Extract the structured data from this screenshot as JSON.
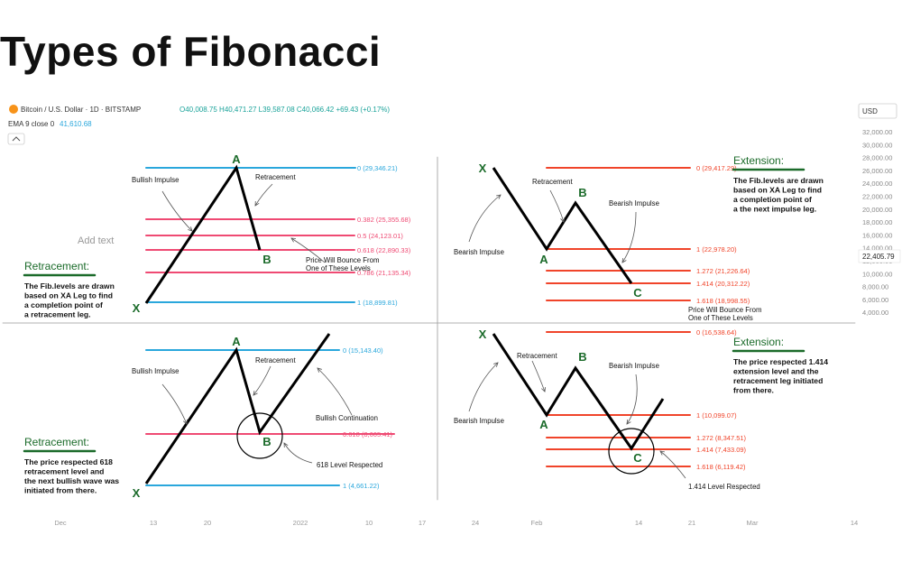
{
  "page_title": "Types of Fibonacci",
  "header": {
    "symbol": "Bitcoin / U.S. Dollar · 1D · BITSTAMP",
    "ohlc": "O40,008.75 H40,471.27 L39,587.08 C40,066.42 +69.43 (+0.17%)",
    "ema": "EMA 9 close 0",
    "ema_value": "41,610.68",
    "currency": "USD",
    "last_price": "22,405.79",
    "add_text": "Add text"
  },
  "colors": {
    "blue": "#2aa7dc",
    "pink": "#ef4a73",
    "red": "#f0442a",
    "green": "#1b6b2a",
    "price_tag_bg": "#ffffff"
  },
  "chart_data": {
    "type": "line",
    "price_axis": [
      "32,000.00",
      "30,000.00",
      "28,000.00",
      "26,000.00",
      "24,000.00",
      "22,000.00",
      "20,000.00",
      "18,000.00",
      "16,000.00",
      "14,000.00",
      "12,000.00",
      "10,000.00",
      "8,000.00",
      "6,000.00",
      "4,000.00"
    ],
    "time_axis": [
      "Dec",
      "13",
      "20",
      "2022",
      "10",
      "17",
      "24",
      "Feb",
      "14",
      "21",
      "Mar",
      "14"
    ],
    "panels": [
      {
        "id": "top-left",
        "heading": "Retracement:",
        "description": [
          "The Fib.levels are drawn",
          "based on XA Leg to find",
          "a completion point of",
          "a retracement leg."
        ],
        "points": [
          "X",
          "A",
          "B"
        ],
        "levels": [
          {
            "label": "0 (29,346.21)",
            "color": "blue"
          },
          {
            "label": "0.382 (25,355.68)",
            "color": "pink"
          },
          {
            "label": "0.5 (24,123.01)",
            "color": "pink"
          },
          {
            "label": "0.618 (22,890.33)",
            "color": "pink"
          },
          {
            "label": "0.786 (21,135.34)",
            "color": "pink"
          },
          {
            "label": "1 (18,899.81)",
            "color": "blue"
          }
        ],
        "annotations": [
          "Bullish Impulse",
          "Retracement",
          "Price Will Bounce From",
          "One of These Levels"
        ]
      },
      {
        "id": "top-right",
        "heading": "Extension:",
        "description": [
          "The Fib.levels are drawn",
          "based on XA Leg to find",
          "a completion point of",
          "a the next impulse leg."
        ],
        "points": [
          "X",
          "A",
          "B",
          "C"
        ],
        "levels": [
          {
            "label": "0 (29,417.29)",
            "color": "red"
          },
          {
            "label": "1 (22,978.20)",
            "color": "red"
          },
          {
            "label": "1.272 (21,226.64)",
            "color": "red"
          },
          {
            "label": "1.414 (20,312.22)",
            "color": "red"
          },
          {
            "label": "1.618 (18,998.55)",
            "color": "red"
          }
        ],
        "annotations": [
          "Retracement",
          "Bearish Impulse",
          "Bearish Impulse",
          "Price Will Bounce From",
          "One of These Levels"
        ]
      },
      {
        "id": "bottom-left",
        "heading": "Retracement:",
        "description": [
          "The price respected 618",
          "retracement level and",
          "the next bullish wave was",
          "initiated from there."
        ],
        "points": [
          "X",
          "A",
          "B"
        ],
        "levels": [
          {
            "label": "0 (15,143.40)",
            "color": "blue"
          },
          {
            "label": "0.618 (8,665.41)",
            "color": "pink"
          },
          {
            "label": "1 (4,661.22)",
            "color": "blue"
          }
        ],
        "annotations": [
          "Bullish Impulse",
          "Retracement",
          "Bullish Continuation",
          "618 Level Respected"
        ]
      },
      {
        "id": "bottom-right",
        "heading": "Extension:",
        "description": [
          "The price respected 1.414",
          "extension level and the",
          "retracement leg initiated",
          "from there."
        ],
        "points": [
          "X",
          "A",
          "B",
          "C"
        ],
        "levels": [
          {
            "label": "0 (16,538.64)",
            "color": "red"
          },
          {
            "label": "1 (10,099.07)",
            "color": "red"
          },
          {
            "label": "1.272 (8,347.51)",
            "color": "red"
          },
          {
            "label": "1.414 (7,433.09)",
            "color": "red"
          },
          {
            "label": "1.618 (6,119.42)",
            "color": "red"
          }
        ],
        "annotations": [
          "Retracement",
          "Bearish Impulse",
          "Bearish Impulse",
          "1.414 Level Respected"
        ]
      }
    ]
  }
}
